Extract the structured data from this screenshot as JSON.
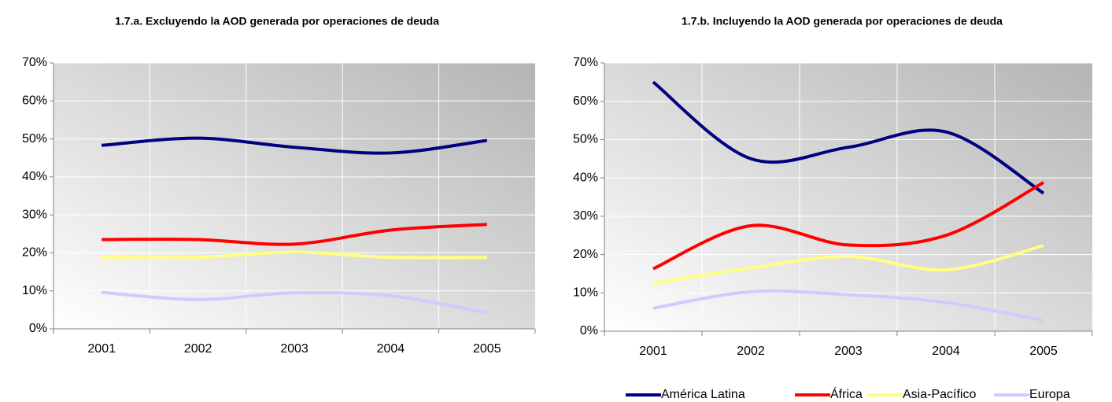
{
  "chart_data": [
    {
      "type": "line",
      "title": "1.7.a. Excluyendo la AOD generada por operaciones de deuda",
      "categories": [
        "2001",
        "2002",
        "2003",
        "2004",
        "2005"
      ],
      "series": [
        {
          "color": "#000080",
          "values": [
            48.3,
            50.2,
            47.8,
            46.3,
            49.6
          ]
        },
        {
          "color": "#ff0000",
          "values": [
            23.5,
            23.5,
            22.3,
            26,
            27.5
          ]
        },
        {
          "color": "#ffff80",
          "values": [
            18.8,
            18.8,
            20.2,
            18.8,
            18.8
          ]
        },
        {
          "color": "#ccccff",
          "values": [
            9.6,
            7.7,
            9.5,
            8.7,
            4.2
          ]
        }
      ],
      "ylim": [
        0,
        70
      ],
      "yticks": [
        {
          "value": 0,
          "label": "0%"
        },
        {
          "value": 10,
          "label": "10%"
        },
        {
          "value": 20,
          "label": "20%"
        },
        {
          "value": 30,
          "label": "30%"
        },
        {
          "value": 40,
          "label": "40%"
        },
        {
          "value": 50,
          "label": "50%"
        },
        {
          "value": 60,
          "label": "60%"
        },
        {
          "value": 70,
          "label": "70%"
        }
      ],
      "grid": true,
      "smooth": true
    },
    {
      "type": "line",
      "title": "1.7.b. Incluyendo la AOD generada por operaciones de deuda",
      "categories": [
        "2001",
        "2002",
        "2003",
        "2004",
        "2005"
      ],
      "series": [
        {
          "name": "América Latina",
          "color": "#000080",
          "values": [
            65,
            45,
            48,
            52,
            36
          ]
        },
        {
          "name": "África",
          "color": "#ff0000",
          "values": [
            16.3,
            27.5,
            22.5,
            25,
            38.8
          ]
        },
        {
          "name": "Asia-Pacífico",
          "color": "#ffff80",
          "values": [
            12.5,
            16.5,
            19.5,
            16,
            22.3
          ]
        },
        {
          "name": "Europa",
          "color": "#ccccff",
          "values": [
            6,
            10.3,
            9.5,
            7.5,
            2.8
          ]
        }
      ],
      "ylim": [
        0,
        70
      ],
      "yticks": [
        {
          "value": 0,
          "label": "0%"
        },
        {
          "value": 10,
          "label": "10%"
        },
        {
          "value": 20,
          "label": "20%"
        },
        {
          "value": 30,
          "label": "30%"
        },
        {
          "value": 40,
          "label": "40%"
        },
        {
          "value": 50,
          "label": "50%"
        },
        {
          "value": 60,
          "label": "60%"
        },
        {
          "value": 70,
          "label": "70%"
        }
      ],
      "grid": true,
      "smooth": true,
      "legend": "bottom"
    }
  ]
}
